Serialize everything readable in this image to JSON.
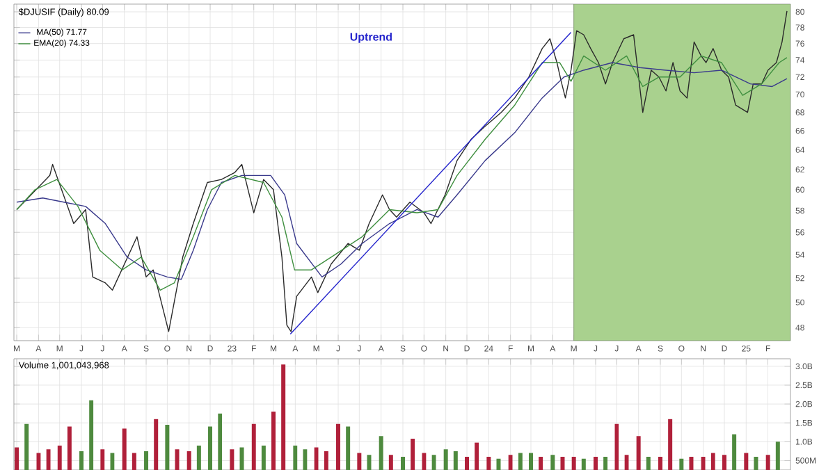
{
  "chart_data": [
    {
      "type": "line",
      "title": "$DJUSIF (Daily) 80.09",
      "log": true,
      "grid": true,
      "legend": "top left",
      "annotations": [
        "Uptrend"
      ],
      "x": [
        "2022-03-01",
        "2022-04-17",
        "2022-04-21",
        "2022-05-21",
        "2022-06-07",
        "2022-06-17",
        "2022-07-05",
        "2022-07-15",
        "2022-08-19",
        "2022-09-01",
        "2022-09-11",
        "2022-10-03",
        "2022-10-23",
        "2022-11-07",
        "2022-11-27",
        "2022-12-17",
        "2023-01-05",
        "2023-01-15",
        "2023-02-01",
        "2023-02-15",
        "2023-03-01",
        "2023-03-13",
        "2023-03-20",
        "2023-03-26",
        "2023-04-03",
        "2023-04-24",
        "2023-05-03",
        "2023-05-22",
        "2023-06-15",
        "2023-07-01",
        "2023-07-15",
        "2023-08-03",
        "2023-08-13",
        "2023-08-23",
        "2023-09-11",
        "2023-10-01",
        "2023-10-11",
        "2023-10-31",
        "2023-11-17",
        "2023-12-07",
        "2023-12-27",
        "2024-01-19",
        "2024-02-07",
        "2024-02-27",
        "2024-03-17",
        "2024-03-28",
        "2024-04-07",
        "2024-04-13",
        "2024-04-19",
        "2024-04-27",
        "2024-05-05",
        "2024-05-15",
        "2024-05-25",
        "2024-06-05",
        "2024-06-15",
        "2024-06-25",
        "2024-07-11",
        "2024-07-25",
        "2024-08-07",
        "2024-08-19",
        "2024-08-30",
        "2024-09-09",
        "2024-09-19",
        "2024-09-29",
        "2024-10-09",
        "2024-10-19",
        "2024-10-29",
        "2024-11-05",
        "2024-11-15",
        "2024-11-27",
        "2024-12-07",
        "2024-12-17",
        "2025-01-03",
        "2025-01-11",
        "2025-01-23",
        "2025-02-01",
        "2025-02-13",
        "2025-02-21",
        "2025-02-28"
      ],
      "series": [
        {
          "color": "#2a2a2a",
          "values": [
            58.1,
            61.4,
            62.5,
            56.8,
            58.1,
            52.1,
            51.6,
            51.0,
            55.6,
            52.1,
            52.7,
            47.7,
            53.8,
            56.8,
            60.7,
            61.0,
            61.7,
            62.5,
            57.8,
            61.0,
            60.0,
            53.8,
            48.2,
            47.7,
            50.5,
            52.1,
            50.8,
            53.2,
            55.0,
            54.4,
            56.8,
            59.5,
            58.1,
            57.4,
            58.8,
            57.8,
            56.8,
            59.5,
            62.9,
            65.1,
            66.5,
            68.0,
            69.6,
            72.0,
            75.4,
            76.6,
            73.7,
            71.5,
            69.6,
            72.8,
            77.6,
            77.1,
            75.4,
            73.7,
            71.2,
            73.7,
            76.6,
            77.1,
            68.0,
            72.8,
            72.0,
            70.4,
            73.7,
            70.4,
            69.6,
            76.2,
            74.5,
            73.7,
            75.4,
            72.8,
            72.0,
            68.8,
            68.0,
            71.2,
            71.2,
            72.8,
            73.7,
            76.2,
            80.1
          ]
        },
        {
          "name": "MA(50) 71.77",
          "color": "#3a3a8c",
          "x": [
            "2022-03-01",
            "2022-04-07",
            "2022-05-07",
            "2022-06-07",
            "2022-07-05",
            "2022-08-05",
            "2022-09-01",
            "2022-10-01",
            "2022-10-21",
            "2022-11-07",
            "2022-11-27",
            "2022-12-17",
            "2023-01-15",
            "2023-02-25",
            "2023-03-17",
            "2023-04-03",
            "2023-05-09",
            "2023-06-05",
            "2023-07-05",
            "2023-08-13",
            "2023-09-21",
            "2023-10-21",
            "2023-11-17",
            "2023-12-27",
            "2024-02-07",
            "2024-03-17",
            "2024-04-17",
            "2024-05-15",
            "2024-06-25",
            "2024-08-03",
            "2024-09-09",
            "2024-10-19",
            "2024-11-27",
            "2025-01-07",
            "2025-02-07",
            "2025-02-28"
          ],
          "values": [
            58.8,
            59.2,
            58.8,
            58.4,
            56.8,
            53.8,
            52.7,
            52.1,
            51.9,
            54.4,
            58.1,
            60.7,
            61.4,
            61.4,
            59.5,
            55.0,
            52.1,
            53.2,
            55.0,
            56.8,
            58.1,
            57.4,
            59.5,
            62.9,
            65.8,
            69.6,
            72.0,
            72.8,
            73.7,
            73.1,
            72.8,
            72.5,
            72.8,
            71.2,
            70.9,
            71.8
          ]
        },
        {
          "name": "EMA(20) 74.33",
          "color": "#3f8f3f",
          "x": [
            "2022-03-01",
            "2022-03-27",
            "2022-04-27",
            "2022-05-27",
            "2022-06-27",
            "2022-07-29",
            "2022-08-25",
            "2022-09-21",
            "2022-10-11",
            "2022-11-07",
            "2022-12-03",
            "2023-01-05",
            "2023-02-15",
            "2023-03-13",
            "2023-03-31",
            "2023-04-24",
            "2023-05-22",
            "2023-07-05",
            "2023-08-13",
            "2023-09-21",
            "2023-10-21",
            "2023-11-17",
            "2023-12-27",
            "2024-02-07",
            "2024-03-17",
            "2024-04-11",
            "2024-04-27",
            "2024-05-15",
            "2024-06-15",
            "2024-07-15",
            "2024-08-07",
            "2024-08-30",
            "2024-09-29",
            "2024-10-29",
            "2024-11-27",
            "2024-12-27",
            "2025-01-23",
            "2025-02-17",
            "2025-02-28"
          ],
          "values": [
            58.1,
            60.0,
            61.0,
            58.4,
            54.4,
            52.7,
            53.8,
            51.0,
            51.6,
            55.6,
            60.0,
            61.4,
            60.7,
            57.4,
            52.7,
            52.7,
            53.8,
            55.6,
            58.1,
            57.8,
            58.1,
            61.4,
            65.1,
            68.8,
            73.7,
            73.7,
            71.5,
            74.5,
            72.8,
            74.5,
            70.9,
            72.0,
            72.0,
            74.5,
            73.7,
            69.9,
            71.2,
            73.7,
            74.3
          ]
        },
        {
          "color": "#2424cc",
          "x": [
            "2023-03-25",
            "2024-04-27"
          ],
          "values": [
            47.5,
            77.4
          ]
        }
      ],
      "bands": [
        {
          "axis": "x",
          "from": "2024-05-01",
          "to": "2025-03-05",
          "color": "#a9d18e"
        }
      ],
      "xlim": [
        "2022-02-25",
        "2025-03-05"
      ],
      "ylim": [
        47,
        81
      ],
      "yticks": [
        48,
        50,
        52,
        54,
        56,
        58,
        60,
        62,
        64,
        66,
        68,
        70,
        72,
        74,
        76,
        78,
        80
      ],
      "xticks": [
        {
          "value": "2022-03-01",
          "label": "M"
        },
        {
          "value": "2022-04-01",
          "label": "A"
        },
        {
          "value": "2022-05-01",
          "label": "M"
        },
        {
          "value": "2022-06-01",
          "label": "J"
        },
        {
          "value": "2022-07-01",
          "label": "J"
        },
        {
          "value": "2022-08-01",
          "label": "A"
        },
        {
          "value": "2022-09-01",
          "label": "S"
        },
        {
          "value": "2022-10-01",
          "label": "O"
        },
        {
          "value": "2022-11-01",
          "label": "N"
        },
        {
          "value": "2022-12-01",
          "label": "D"
        },
        {
          "value": "2023-01-01",
          "label": "23"
        },
        {
          "value": "2023-02-01",
          "label": "F"
        },
        {
          "value": "2023-03-01",
          "label": "M"
        },
        {
          "value": "2023-04-01",
          "label": "A"
        },
        {
          "value": "2023-05-01",
          "label": "M"
        },
        {
          "value": "2023-06-01",
          "label": "J"
        },
        {
          "value": "2023-07-01",
          "label": "J"
        },
        {
          "value": "2023-08-01",
          "label": "A"
        },
        {
          "value": "2023-09-01",
          "label": "S"
        },
        {
          "value": "2023-10-01",
          "label": "O"
        },
        {
          "value": "2023-11-01",
          "label": "N"
        },
        {
          "value": "2023-12-01",
          "label": "D"
        },
        {
          "value": "2024-01-01",
          "label": "24"
        },
        {
          "value": "2024-02-01",
          "label": "F"
        },
        {
          "value": "2024-03-01",
          "label": "M"
        },
        {
          "value": "2024-04-01",
          "label": "A"
        },
        {
          "value": "2024-05-01",
          "label": "M"
        },
        {
          "value": "2024-06-01",
          "label": "J"
        },
        {
          "value": "2024-07-01",
          "label": "J"
        },
        {
          "value": "2024-08-01",
          "label": "A"
        },
        {
          "value": "2024-09-01",
          "label": "S"
        },
        {
          "value": "2024-10-01",
          "label": "O"
        },
        {
          "value": "2024-11-01",
          "label": "N"
        },
        {
          "value": "2024-12-01",
          "label": "D"
        },
        {
          "value": "2025-01-01",
          "label": "25"
        },
        {
          "value": "2025-02-01",
          "label": "F"
        }
      ]
    },
    {
      "type": "bar",
      "title": "Volume 1,001,043,968",
      "grid": true,
      "tick_labels": "y",
      "x": [
        "2022-03-01",
        "2022-03-15",
        "2022-04-01",
        "2022-04-15",
        "2022-05-01",
        "2022-05-15",
        "2022-06-01",
        "2022-06-15",
        "2022-07-01",
        "2022-07-15",
        "2022-08-01",
        "2022-08-15",
        "2022-09-01",
        "2022-09-15",
        "2022-10-01",
        "2022-10-15",
        "2022-11-01",
        "2022-11-15",
        "2022-12-01",
        "2022-12-15",
        "2023-01-01",
        "2023-01-15",
        "2023-02-01",
        "2023-02-15",
        "2023-03-01",
        "2023-03-15",
        "2023-04-01",
        "2023-04-15",
        "2023-05-01",
        "2023-05-15",
        "2023-06-01",
        "2023-06-15",
        "2023-07-01",
        "2023-07-15",
        "2023-08-01",
        "2023-08-15",
        "2023-09-01",
        "2023-09-15",
        "2023-10-01",
        "2023-10-15",
        "2023-11-01",
        "2023-11-15",
        "2023-12-01",
        "2023-12-15",
        "2024-01-01",
        "2024-01-15",
        "2024-02-01",
        "2024-02-15",
        "2024-03-01",
        "2024-03-15",
        "2024-04-01",
        "2024-04-15",
        "2024-05-01",
        "2024-05-15",
        "2024-06-01",
        "2024-06-15",
        "2024-07-01",
        "2024-07-15",
        "2024-08-01",
        "2024-08-15",
        "2024-09-01",
        "2024-09-15",
        "2024-10-01",
        "2024-10-15",
        "2024-11-01",
        "2024-11-15",
        "2024-12-01",
        "2024-12-15",
        "2025-01-01",
        "2025-01-15",
        "2025-02-01",
        "2025-02-15"
      ],
      "values": [
        850000000,
        1470000000,
        700000000,
        800000000,
        900000000,
        1400000000,
        750000000,
        2100000000,
        800000000,
        700000000,
        1350000000,
        700000000,
        750000000,
        1600000000,
        1450000000,
        800000000,
        750000000,
        900000000,
        1400000000,
        1750000000,
        800000000,
        850000000,
        1470000000,
        900000000,
        1800000000,
        3050000000,
        900000000,
        800000000,
        850000000,
        750000000,
        1470000000,
        1400000000,
        700000000,
        650000000,
        1150000000,
        650000000,
        600000000,
        1080000000,
        700000000,
        650000000,
        800000000,
        750000000,
        600000000,
        980000000,
        600000000,
        550000000,
        650000000,
        700000000,
        700000000,
        600000000,
        650000000,
        600000000,
        600000000,
        550000000,
        600000000,
        600000000,
        1470000000,
        650000000,
        1150000000,
        600000000,
        600000000,
        1600000000,
        550000000,
        600000000,
        600000000,
        700000000,
        650000000,
        1200000000,
        700000000,
        600000000,
        650000000,
        1000000000
      ],
      "colors": [
        "#b0203a",
        "#4e8a3e",
        "#b0203a",
        "#b0203a",
        "#b0203a",
        "#b0203a",
        "#4e8a3e",
        "#4e8a3e",
        "#b0203a",
        "#4e8a3e",
        "#b0203a",
        "#b0203a",
        "#4e8a3e",
        "#b0203a",
        "#4e8a3e",
        "#b0203a",
        "#b0203a",
        "#4e8a3e",
        "#4e8a3e",
        "#4e8a3e",
        "#b0203a",
        "#4e8a3e",
        "#b0203a",
        "#4e8a3e",
        "#b0203a",
        "#b0203a",
        "#4e8a3e",
        "#4e8a3e",
        "#b0203a",
        "#b0203a",
        "#b0203a",
        "#4e8a3e",
        "#b0203a",
        "#4e8a3e",
        "#4e8a3e",
        "#b0203a",
        "#4e8a3e",
        "#b0203a",
        "#b0203a",
        "#4e8a3e",
        "#4e8a3e",
        "#4e8a3e",
        "#b0203a",
        "#b0203a",
        "#b0203a",
        "#4e8a3e",
        "#b0203a",
        "#4e8a3e",
        "#4e8a3e",
        "#b0203a",
        "#4e8a3e",
        "#b0203a",
        "#b0203a",
        "#4e8a3e",
        "#b0203a",
        "#4e8a3e",
        "#b0203a",
        "#b0203a",
        "#b0203a",
        "#4e8a3e",
        "#b0203a",
        "#b0203a",
        "#4e8a3e",
        "#b0203a",
        "#b0203a",
        "#b0203a",
        "#b0203a",
        "#4e8a3e",
        "#b0203a",
        "#4e8a3e",
        "#b0203a",
        "#4e8a3e"
      ],
      "xlim": [
        "2022-02-25",
        "2025-03-05"
      ],
      "ylim": [
        250000000,
        3200000000
      ],
      "yticks": [
        {
          "value": 500000000,
          "label": "500M"
        },
        {
          "value": 1000000000,
          "label": "1.0B"
        },
        {
          "value": 1500000000,
          "label": "1.5B"
        },
        {
          "value": 2000000000,
          "label": "2.0B"
        },
        {
          "value": 2500000000,
          "label": "2.5B"
        },
        {
          "value": 3000000000,
          "label": "3.0B"
        }
      ],
      "xticks": [
        {
          "value": "2022-03-01",
          "label": null
        },
        {
          "value": "2022-04-01",
          "label": null
        },
        {
          "value": "2022-05-01",
          "label": null
        },
        {
          "value": "2022-06-01",
          "label": null
        },
        {
          "value": "2022-07-01",
          "label": null
        },
        {
          "value": "2022-08-01",
          "label": null
        },
        {
          "value": "2022-09-01",
          "label": null
        },
        {
          "value": "2022-10-01",
          "label": null
        },
        {
          "value": "2022-11-01",
          "label": null
        },
        {
          "value": "2022-12-01",
          "label": null
        },
        {
          "value": "2023-01-01",
          "label": null
        },
        {
          "value": "2023-02-01",
          "label": null
        },
        {
          "value": "2023-03-01",
          "label": null
        },
        {
          "value": "2023-04-01",
          "label": null
        },
        {
          "value": "2023-05-01",
          "label": null
        },
        {
          "value": "2023-06-01",
          "label": null
        },
        {
          "value": "2023-07-01",
          "label": null
        },
        {
          "value": "2023-08-01",
          "label": null
        },
        {
          "value": "2023-09-01",
          "label": null
        },
        {
          "value": "2023-10-01",
          "label": null
        },
        {
          "value": "2023-11-01",
          "label": null
        },
        {
          "value": "2023-12-01",
          "label": null
        },
        {
          "value": "2024-01-01",
          "label": null
        },
        {
          "value": "2024-02-01",
          "label": null
        },
        {
          "value": "2024-03-01",
          "label": null
        },
        {
          "value": "2024-04-01",
          "label": null
        },
        {
          "value": "2024-05-01",
          "label": null
        },
        {
          "value": "2024-06-01",
          "label": null
        },
        {
          "value": "2024-07-01",
          "label": null
        },
        {
          "value": "2024-08-01",
          "label": null
        },
        {
          "value": "2024-09-01",
          "label": null
        },
        {
          "value": "2024-10-01",
          "label": null
        },
        {
          "value": "2024-11-01",
          "label": null
        },
        {
          "value": "2024-12-01",
          "label": null
        },
        {
          "value": "2025-01-01",
          "label": null
        },
        {
          "value": "2025-02-01",
          "label": null
        }
      ]
    }
  ]
}
